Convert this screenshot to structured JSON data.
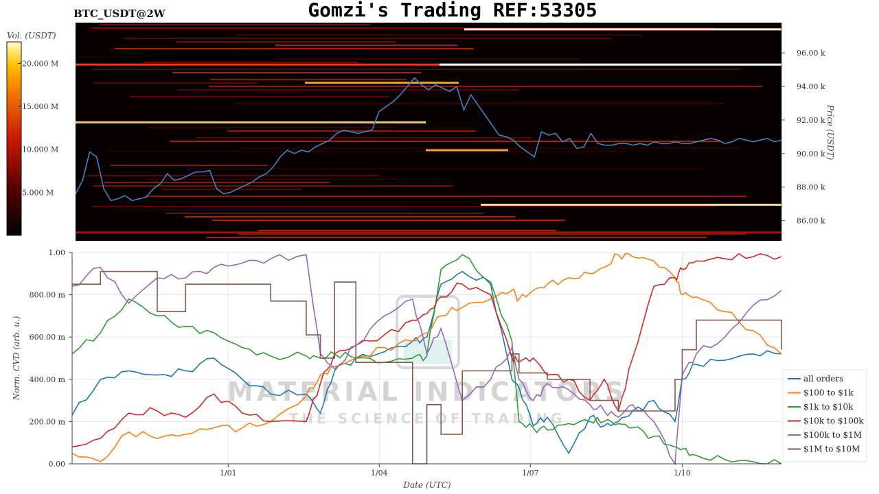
{
  "header": {
    "title": "Gomzi's Trading REF:53305",
    "symbol": "BTC_USDT@2W"
  },
  "watermark": {
    "line1": "MATERIAL INDICATORS",
    "line2": "THE SCIENCE OF TRADING"
  },
  "colors": {
    "heatmap_bg": "#060000",
    "price_line": "#3a86c8",
    "grid": "#e6e6e6"
  },
  "chart_data": [
    {
      "type": "heatmap",
      "name": "order-book-heatmap",
      "ylabel": "Price (USDT)",
      "ylim": [
        84800,
        97800
      ],
      "y_ticks": [
        "86.00 k",
        "88.00 k",
        "90.00 k",
        "92.00 k",
        "94.00 k",
        "96.00 k"
      ],
      "y_tick_values": [
        86000,
        88000,
        90000,
        92000,
        94000,
        96000
      ],
      "colorbar": {
        "label": "Vol. (USDT)",
        "ticks": [
          "5.000 M",
          "10.000 M",
          "15.000 M",
          "20.000 M"
        ],
        "tick_values": [
          5,
          10,
          15,
          20
        ],
        "range": [
          0,
          22.5
        ]
      },
      "price_series": {
        "name": "price",
        "x": [
          0,
          1,
          2,
          3,
          4,
          5,
          6,
          7,
          8,
          9,
          10,
          11,
          12,
          13,
          14,
          15,
          16,
          17,
          18,
          19,
          20,
          21,
          22,
          23,
          24,
          25,
          26,
          27,
          28,
          29,
          30,
          31,
          32,
          33,
          34,
          35,
          36,
          37,
          38,
          39,
          40,
          41,
          42,
          43,
          44,
          45,
          46,
          47,
          48,
          49,
          50,
          51,
          52,
          53,
          54,
          55,
          56,
          57,
          58,
          59,
          60,
          61,
          62,
          63,
          64,
          65,
          66,
          67,
          68,
          69,
          70,
          71,
          72,
          73,
          74,
          75,
          76,
          77,
          78,
          79,
          80,
          81,
          82,
          83,
          84,
          85,
          86,
          87,
          88,
          89,
          90,
          91,
          92,
          93,
          94,
          95,
          96,
          97,
          98,
          99,
          100
        ],
        "values": [
          87600,
          88400,
          90100,
          89800,
          87900,
          87200,
          87300,
          87500,
          87200,
          87300,
          87400,
          87900,
          88200,
          88800,
          88400,
          88500,
          88700,
          88900,
          88900,
          89000,
          87900,
          87600,
          87700,
          87900,
          88100,
          88300,
          88600,
          88800,
          89200,
          89800,
          90200,
          90000,
          90200,
          90100,
          90400,
          90600,
          90800,
          91200,
          91400,
          91300,
          91200,
          91300,
          91400,
          92500,
          92800,
          93100,
          93500,
          94000,
          94500,
          94100,
          93800,
          94100,
          93900,
          93700,
          94000,
          92600,
          93500,
          92900,
          92300,
          91700,
          91100,
          91000,
          90800,
          90400,
          90100,
          89800,
          91300,
          91100,
          91200,
          90700,
          90900,
          90300,
          90400,
          91200,
          90600,
          90500,
          90500,
          90600,
          90600,
          90500,
          90600,
          90500,
          90700,
          90600,
          90600,
          90700,
          90600,
          90600,
          90700,
          90800,
          90900,
          90800,
          90600,
          90700,
          90900,
          90800,
          90700,
          90800,
          90900,
          90700,
          90800
        ]
      }
    },
    {
      "type": "line",
      "name": "normalized-cvd",
      "title": "",
      "xlabel": "Date (UTC)",
      "ylabel": "Norm. CVD (arb. u.)",
      "xlim": [
        0,
        100
      ],
      "ylim": [
        0,
        1
      ],
      "y_ticks": [
        "0.00",
        "200.00 m",
        "400.00 m",
        "600.00 m",
        "800.00 m",
        "1.00"
      ],
      "y_tick_values": [
        0,
        0.2,
        0.4,
        0.6,
        0.8,
        1.0
      ],
      "x_ticks": [
        "1/01",
        "1/04",
        "1/07",
        "1/10"
      ],
      "x_tick_values": [
        22,
        43.3,
        64.6,
        86
      ],
      "legend": "right",
      "grid": true,
      "x": [
        0,
        4,
        8,
        12,
        16,
        20,
        24,
        28,
        33,
        35,
        37,
        40,
        44,
        48,
        50,
        52,
        55,
        59,
        62,
        63,
        65,
        67,
        70,
        73,
        75,
        77,
        79,
        82,
        85,
        86,
        88,
        92,
        96,
        100
      ],
      "series": [
        {
          "name": "all orders",
          "color": "#1f77b4",
          "values": [
            0.23,
            0.4,
            0.44,
            0.42,
            0.44,
            0.5,
            0.4,
            0.33,
            0.33,
            0.24,
            0.44,
            0.5,
            0.53,
            0.58,
            0.6,
            0.85,
            0.91,
            0.85,
            0.4,
            0.36,
            0.18,
            0.22,
            0.05,
            0.22,
            0.18,
            0.2,
            0.25,
            0.3,
            0.2,
            0.4,
            0.47,
            0.49,
            0.52,
            0.52
          ]
        },
        {
          "name": "$100 to $1k",
          "color": "#ff7f0e",
          "values": [
            0.05,
            0.01,
            0.15,
            0.12,
            0.14,
            0.17,
            0.17,
            0.2,
            0.32,
            0.42,
            0.46,
            0.5,
            0.55,
            0.58,
            0.62,
            0.7,
            0.74,
            0.78,
            0.82,
            0.78,
            0.82,
            0.85,
            0.88,
            0.9,
            0.93,
            0.99,
            0.98,
            0.96,
            0.88,
            0.8,
            0.79,
            0.72,
            0.63,
            0.52
          ]
        },
        {
          "name": "$1k to $10k",
          "color": "#2ca02c",
          "values": [
            0.52,
            0.62,
            0.78,
            0.7,
            0.65,
            0.62,
            0.55,
            0.51,
            0.51,
            0.5,
            0.52,
            0.5,
            0.48,
            0.5,
            0.51,
            0.92,
            0.99,
            0.86,
            0.58,
            0.2,
            0.17,
            0.16,
            0.19,
            0.2,
            0.2,
            0.19,
            0.17,
            0.13,
            0.08,
            0.07,
            0.04,
            0.02,
            0.01,
            0.0
          ]
        },
        {
          "name": "$10k to $100k",
          "color": "#d62728",
          "values": [
            0.08,
            0.12,
            0.24,
            0.25,
            0.22,
            0.33,
            0.24,
            0.2,
            0.2,
            0.38,
            0.52,
            0.56,
            0.61,
            0.68,
            0.71,
            0.79,
            0.85,
            0.8,
            0.5,
            0.48,
            0.5,
            0.42,
            0.4,
            0.3,
            0.4,
            0.25,
            0.5,
            0.84,
            0.88,
            0.92,
            0.96,
            0.97,
            0.98,
            0.98
          ]
        },
        {
          "name": "$100k to $1M",
          "color": "#9467bd",
          "values": [
            0.84,
            0.93,
            0.76,
            0.88,
            0.88,
            0.93,
            0.95,
            0.97,
            0.99,
            0.52,
            0.45,
            0.56,
            0.7,
            0.78,
            0.52,
            0.64,
            0.3,
            0.4,
            0.55,
            0.4,
            0.3,
            0.38,
            0.35,
            0.28,
            0.25,
            0.22,
            0.28,
            0.2,
            0.0,
            0.42,
            0.52,
            0.6,
            0.75,
            0.82
          ]
        },
        {
          "name": "$1M to $10M",
          "color": "#8c564b",
          "values": [
            0.85,
            0.91,
            0.91,
            0.72,
            0.85,
            0.85,
            0.85,
            0.77,
            0.61,
            0.5,
            0.86,
            0.48,
            0.48,
            0.0,
            0.28,
            0.14,
            0.44,
            0.44,
            0.52,
            0.43,
            0.43,
            0.4,
            0.4,
            0.3,
            0.3,
            0.25,
            0.25,
            0.25,
            0.4,
            0.54,
            0.68,
            0.68,
            0.68,
            0.54
          ]
        }
      ]
    }
  ]
}
